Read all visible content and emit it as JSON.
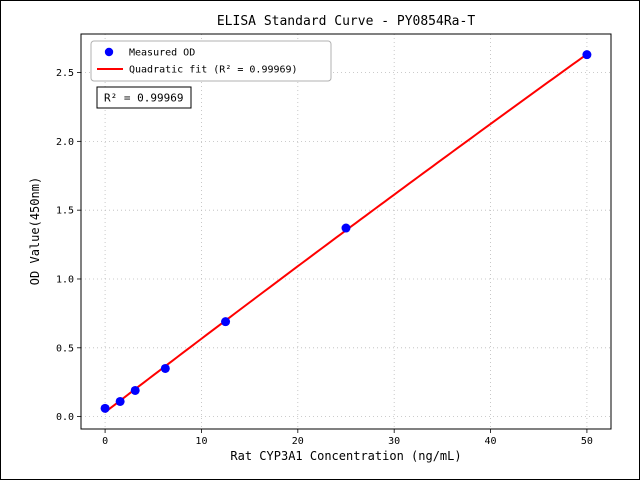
{
  "figure": {
    "background": "#ffffff",
    "border_color": "#000000",
    "grid_color": "#bbbbbb",
    "axis_color": "#000000"
  },
  "chart_data": {
    "type": "scatter",
    "title": "ELISA Standard Curve - PY0854Ra-T",
    "xlabel": "Rat CYP3A1 Concentration (ng/mL)",
    "ylabel": "OD Value(450nm)",
    "xlim": [
      -2.5,
      52.5
    ],
    "ylim": [
      -0.09,
      2.78
    ],
    "xticks": [
      0,
      10,
      20,
      30,
      40,
      50
    ],
    "xtick_labels": [
      "0",
      "10",
      "20",
      "30",
      "40",
      "50"
    ],
    "yticks": [
      0,
      0.5,
      1,
      1.5,
      2,
      2.5
    ],
    "ytick_labels": [
      "0.0",
      "0.5",
      "1.0",
      "1.5",
      "2.0",
      "2.5"
    ],
    "grid": true,
    "annotation": "R² = 0.99969",
    "series": [
      {
        "name": "Measured OD",
        "type": "scatter",
        "color": "#0000ff",
        "x": [
          0,
          1.5625,
          3.125,
          6.25,
          12.5,
          25,
          50
        ],
        "y": [
          0.06,
          0.11,
          0.19,
          0.35,
          0.69,
          1.37,
          2.63
        ]
      },
      {
        "name": "Quadratic fit (R² = 0.99969)",
        "type": "line",
        "fit": "quadratic",
        "color": "#ff0000",
        "r_squared": 0.99969
      }
    ]
  }
}
